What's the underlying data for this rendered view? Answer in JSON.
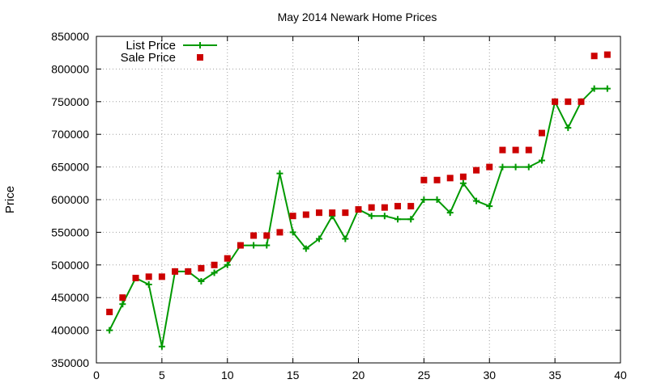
{
  "chart_data": {
    "type": "line",
    "title": "May 2014 Newark Home Prices",
    "xlabel": "",
    "ylabel": "Price",
    "xlim": [
      0,
      40
    ],
    "ylim": [
      350000,
      850000
    ],
    "x_ticks": [
      0,
      5,
      10,
      15,
      20,
      25,
      30,
      35,
      40
    ],
    "y_ticks": [
      350000,
      400000,
      450000,
      500000,
      550000,
      600000,
      650000,
      700000,
      750000,
      800000,
      850000
    ],
    "grid": true,
    "legend_position": "top-left",
    "colors": {
      "list": "#009900",
      "sale": "#cc0000"
    },
    "x": [
      1,
      2,
      3,
      4,
      5,
      6,
      7,
      8,
      9,
      10,
      11,
      12,
      13,
      14,
      15,
      16,
      17,
      18,
      19,
      20,
      21,
      22,
      23,
      24,
      25,
      26,
      27,
      28,
      29,
      30,
      31,
      32,
      33,
      34,
      35,
      36,
      37,
      38,
      39
    ],
    "series": [
      {
        "name": "List Price",
        "style": "line+cross",
        "values": [
          400000,
          440000,
          480000,
          470000,
          375000,
          490000,
          490000,
          475000,
          488000,
          500000,
          530000,
          530000,
          530000,
          640000,
          550000,
          525000,
          540000,
          575000,
          540000,
          585000,
          575000,
          575000,
          570000,
          570000,
          600000,
          600000,
          580000,
          625000,
          598000,
          590000,
          650000,
          650000,
          650000,
          660000,
          750000,
          710000,
          750000,
          770000,
          770000
        ]
      },
      {
        "name": "Sale Price",
        "style": "square",
        "values": [
          428000,
          450000,
          480000,
          482000,
          482000,
          490000,
          490000,
          495000,
          500000,
          510000,
          530000,
          545000,
          545000,
          550000,
          575000,
          577000,
          580000,
          580000,
          580000,
          585000,
          588000,
          588000,
          590000,
          590000,
          630000,
          630000,
          633000,
          635000,
          645000,
          650000,
          676000,
          676000,
          676000,
          702000,
          750000,
          750000,
          750000,
          820000,
          822000
        ]
      }
    ]
  }
}
